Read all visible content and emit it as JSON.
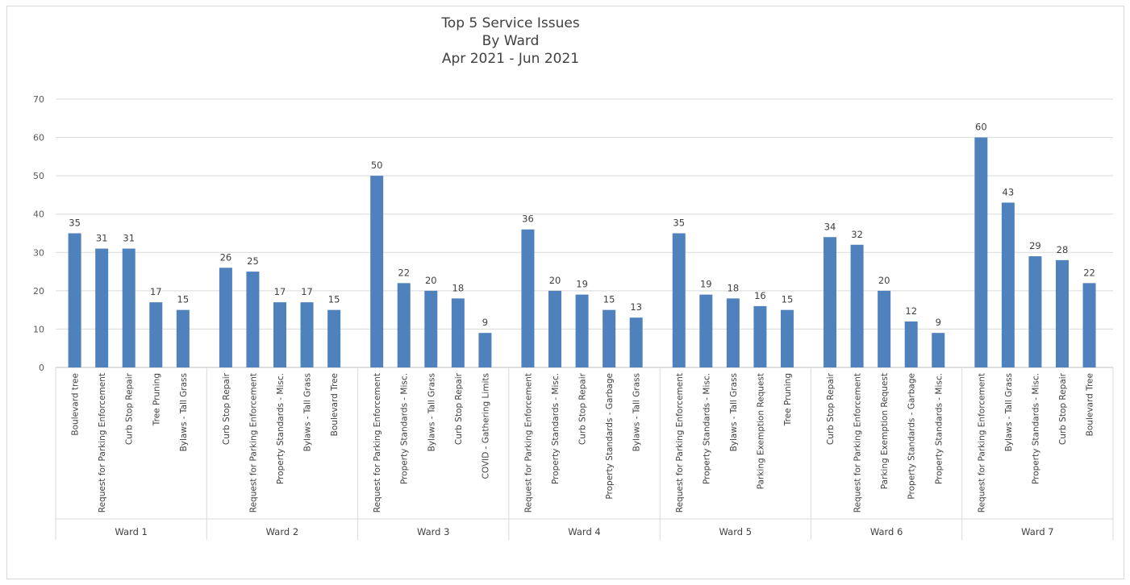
{
  "chart_data": {
    "type": "bar",
    "title_lines": [
      "Top 5 Service Issues",
      "By Ward",
      "Apr 2021 - Jun 2021"
    ],
    "ylim": [
      0,
      70
    ],
    "yticks": [
      0,
      10,
      20,
      30,
      40,
      50,
      60,
      70
    ],
    "grid": true,
    "bar_color": "#4f81bd",
    "groups": [
      {
        "name": "Ward 1",
        "categories": [
          "Boulevard tree",
          "Request for Parking Enforcement",
          "Curb Stop Repair",
          "Tree Pruning",
          "Bylaws - Tall Grass"
        ],
        "values": [
          35,
          31,
          31,
          17,
          15
        ]
      },
      {
        "name": "Ward 2",
        "categories": [
          "Curb Stop Repair",
          "Request for Parking Enforcement",
          "Property Standards - Misc.",
          "Bylaws - Tall Grass",
          "Boulevard Tree"
        ],
        "values": [
          26,
          25,
          17,
          17,
          15
        ]
      },
      {
        "name": "Ward 3",
        "categories": [
          "Request for Parking Enforcement",
          "Property Standards - Misc.",
          "Bylaws - Tall Grass",
          "Curb Stop Repair",
          "COVID - Gathering Limits"
        ],
        "values": [
          50,
          22,
          20,
          18,
          9
        ]
      },
      {
        "name": "Ward 4",
        "categories": [
          "Request for Parking Enforcement",
          "Property Standards - Misc.",
          "Curb Stop Repair",
          "Property Standards - Garbage",
          "Bylaws - Tall Grass"
        ],
        "values": [
          36,
          20,
          19,
          15,
          13
        ]
      },
      {
        "name": "Ward 5",
        "categories": [
          "Request for Parking Enforcement",
          "Property Standards - Misc.",
          "Bylaws - Tall Grass",
          "Parking Exemption Request",
          "Tree Pruning"
        ],
        "values": [
          35,
          19,
          18,
          16,
          15
        ]
      },
      {
        "name": "Ward 6",
        "categories": [
          "Curb Stop Repair",
          "Request for Parking Enforcement",
          "Parking Exemption Request",
          "Property Standards - Garbage",
          "Property Standards - Misc."
        ],
        "values": [
          34,
          32,
          20,
          12,
          9
        ]
      },
      {
        "name": "Ward 7",
        "categories": [
          "Request for Parking Enforcement",
          "Bylaws - Tall Grass",
          "Property Standards - Misc.",
          "Curb Stop Repair",
          "Boulevard Tree"
        ],
        "values": [
          60,
          43,
          29,
          28,
          22
        ]
      }
    ]
  }
}
